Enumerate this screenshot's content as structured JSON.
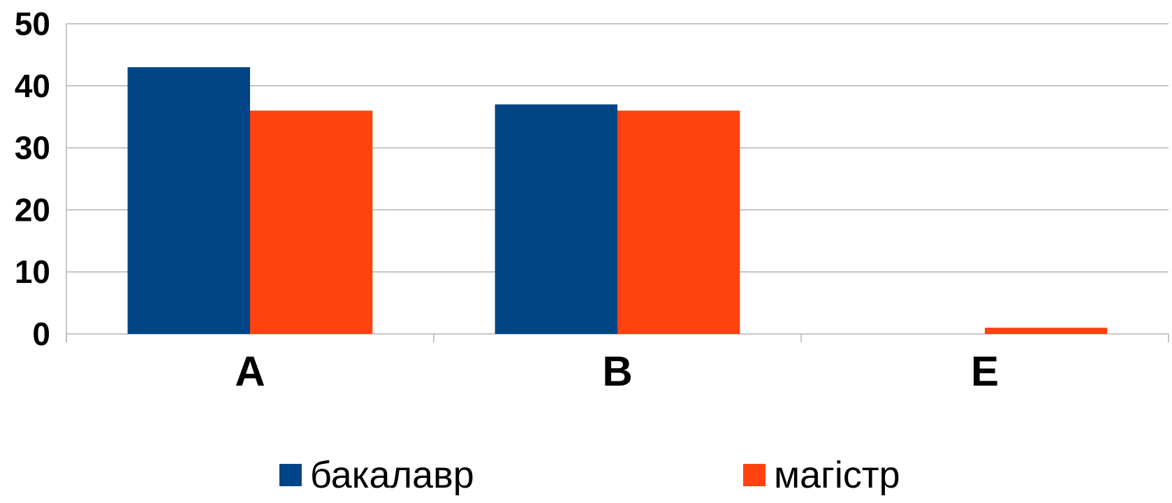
{
  "chart_data": {
    "type": "bar",
    "categories": [
      "A",
      "B",
      "E"
    ],
    "series": [
      {
        "name": "бакалавр",
        "values": [
          43,
          37,
          0
        ],
        "color": "#004586"
      },
      {
        "name": "магістр",
        "values": [
          36,
          36,
          1
        ],
        "color": "#ff420e"
      }
    ],
    "ylim": [
      0,
      50
    ],
    "yticks": [
      0,
      10,
      20,
      30,
      40,
      50
    ],
    "grid": true,
    "legend": "bottom"
  }
}
